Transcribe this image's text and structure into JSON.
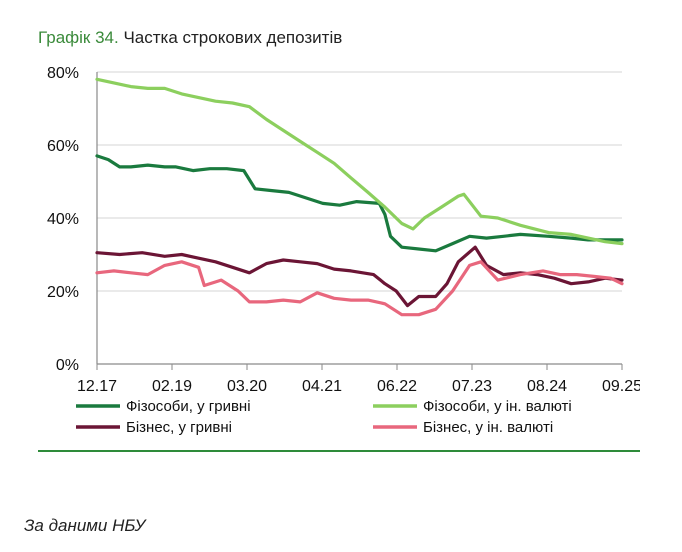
{
  "chart_data": {
    "type": "line",
    "label": "Графік 34.",
    "title": "Частка строкових депозитів",
    "x_ticks": [
      "12.17",
      "02.19",
      "03.20",
      "04.21",
      "06.22",
      "07.23",
      "08.24",
      "09.25"
    ],
    "y_ticks": [
      "0%",
      "20%",
      "40%",
      "60%",
      "80%"
    ],
    "ylim": [
      0,
      80
    ],
    "xlim": [
      "2017-12",
      "2025-09"
    ],
    "grid": "horizontal",
    "legend_placement": "bottom",
    "series": [
      {
        "name": "Фізособи, у гривні",
        "color": "#1a7a3e",
        "points": [
          [
            "2017-12",
            57
          ],
          [
            "2018-02",
            56
          ],
          [
            "2018-04",
            54
          ],
          [
            "2018-06",
            54
          ],
          [
            "2018-09",
            54.5
          ],
          [
            "2018-12",
            54
          ],
          [
            "2019-02",
            54
          ],
          [
            "2019-05",
            53
          ],
          [
            "2019-08",
            53.5
          ],
          [
            "2019-11",
            53.5
          ],
          [
            "2020-02",
            53
          ],
          [
            "2020-04",
            48
          ],
          [
            "2020-07",
            47.5
          ],
          [
            "2020-10",
            47
          ],
          [
            "2021-01",
            45.5
          ],
          [
            "2021-04",
            44
          ],
          [
            "2021-07",
            43.5
          ],
          [
            "2021-10",
            44.5
          ],
          [
            "2022-02",
            44
          ],
          [
            "2022-03",
            41
          ],
          [
            "2022-04",
            35
          ],
          [
            "2022-06",
            32
          ],
          [
            "2022-09",
            31.5
          ],
          [
            "2022-12",
            31
          ],
          [
            "2023-03",
            33
          ],
          [
            "2023-06",
            35
          ],
          [
            "2023-09",
            34.5
          ],
          [
            "2023-12",
            35
          ],
          [
            "2024-03",
            35.5
          ],
          [
            "2024-08",
            35
          ],
          [
            "2024-12",
            34.5
          ],
          [
            "2025-03",
            34
          ],
          [
            "2025-06",
            34
          ],
          [
            "2025-09",
            34
          ]
        ]
      },
      {
        "name": "Фізособи, у ін. валюті",
        "color": "#8ccf5e",
        "points": [
          [
            "2017-12",
            78
          ],
          [
            "2018-03",
            77
          ],
          [
            "2018-06",
            76
          ],
          [
            "2018-09",
            75.5
          ],
          [
            "2018-12",
            75.5
          ],
          [
            "2019-03",
            74
          ],
          [
            "2019-06",
            73
          ],
          [
            "2019-09",
            72
          ],
          [
            "2019-12",
            71.5
          ],
          [
            "2020-03",
            70.5
          ],
          [
            "2020-06",
            67
          ],
          [
            "2020-09",
            64
          ],
          [
            "2020-12",
            61
          ],
          [
            "2021-03",
            58
          ],
          [
            "2021-06",
            55
          ],
          [
            "2021-09",
            51
          ],
          [
            "2021-12",
            47
          ],
          [
            "2022-03",
            43
          ],
          [
            "2022-06",
            38.5
          ],
          [
            "2022-08",
            37
          ],
          [
            "2022-10",
            40
          ],
          [
            "2023-01",
            43
          ],
          [
            "2023-04",
            46
          ],
          [
            "2023-05",
            46.5
          ],
          [
            "2023-08",
            40.5
          ],
          [
            "2023-11",
            40
          ],
          [
            "2024-03",
            38
          ],
          [
            "2024-08",
            36
          ],
          [
            "2024-12",
            35.5
          ],
          [
            "2025-03",
            34.5
          ],
          [
            "2025-06",
            33.5
          ],
          [
            "2025-09",
            33
          ]
        ]
      },
      {
        "name": "Бізнес, у гривні",
        "color": "#6b1535",
        "points": [
          [
            "2017-12",
            30.5
          ],
          [
            "2018-04",
            30
          ],
          [
            "2018-08",
            30.5
          ],
          [
            "2018-12",
            29.5
          ],
          [
            "2019-03",
            30
          ],
          [
            "2019-06",
            29
          ],
          [
            "2019-09",
            28
          ],
          [
            "2019-12",
            26.5
          ],
          [
            "2020-03",
            25
          ],
          [
            "2020-06",
            27.5
          ],
          [
            "2020-09",
            28.5
          ],
          [
            "2020-12",
            28
          ],
          [
            "2021-03",
            27.5
          ],
          [
            "2021-06",
            26
          ],
          [
            "2021-09",
            25.5
          ],
          [
            "2022-01",
            24.5
          ],
          [
            "2022-03",
            22
          ],
          [
            "2022-05",
            20
          ],
          [
            "2022-07",
            16
          ],
          [
            "2022-09",
            18.5
          ],
          [
            "2022-12",
            18.5
          ],
          [
            "2023-02",
            22
          ],
          [
            "2023-04",
            28
          ],
          [
            "2023-07",
            32
          ],
          [
            "2023-09",
            27
          ],
          [
            "2023-12",
            24.5
          ],
          [
            "2024-03",
            25
          ],
          [
            "2024-06",
            24.5
          ],
          [
            "2024-09",
            23.5
          ],
          [
            "2024-12",
            22
          ],
          [
            "2025-03",
            22.5
          ],
          [
            "2025-06",
            23.5
          ],
          [
            "2025-09",
            23
          ]
        ]
      },
      {
        "name": "Бізнес, у ін. валюті",
        "color": "#e8677d",
        "points": [
          [
            "2017-12",
            25
          ],
          [
            "2018-03",
            25.5
          ],
          [
            "2018-06",
            25
          ],
          [
            "2018-09",
            24.5
          ],
          [
            "2018-12",
            27
          ],
          [
            "2019-03",
            28
          ],
          [
            "2019-06",
            26.5
          ],
          [
            "2019-07",
            21.5
          ],
          [
            "2019-10",
            23
          ],
          [
            "2020-01",
            20
          ],
          [
            "2020-03",
            17
          ],
          [
            "2020-06",
            17
          ],
          [
            "2020-09",
            17.5
          ],
          [
            "2020-12",
            17
          ],
          [
            "2021-03",
            19.5
          ],
          [
            "2021-06",
            18
          ],
          [
            "2021-09",
            17.5
          ],
          [
            "2021-12",
            17.5
          ],
          [
            "2022-03",
            16.5
          ],
          [
            "2022-06",
            13.5
          ],
          [
            "2022-09",
            13.5
          ],
          [
            "2022-12",
            15
          ],
          [
            "2023-03",
            20
          ],
          [
            "2023-06",
            27
          ],
          [
            "2023-08",
            28
          ],
          [
            "2023-11",
            23
          ],
          [
            "2024-03",
            24.5
          ],
          [
            "2024-07",
            25.5
          ],
          [
            "2024-10",
            24.5
          ],
          [
            "2025-01",
            24.5
          ],
          [
            "2025-04",
            24
          ],
          [
            "2025-07",
            23.5
          ],
          [
            "2025-09",
            22
          ]
        ]
      }
    ]
  },
  "source_note": "За даними НБУ"
}
